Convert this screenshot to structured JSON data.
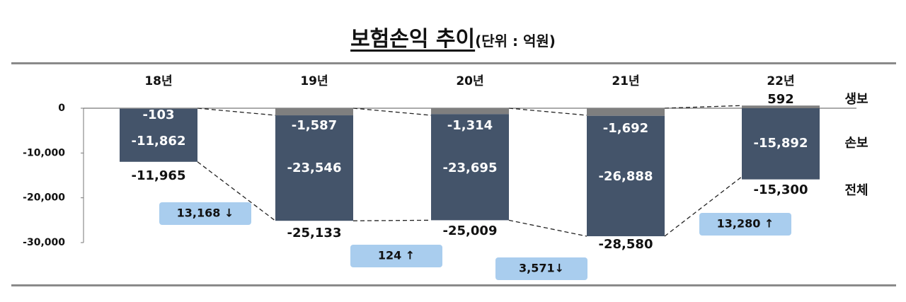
{
  "title": "보험손익 추이",
  "unit": "(단위 : 억원)",
  "chart_data": {
    "type": "bar",
    "categories": [
      "18년",
      "19년",
      "20년",
      "21년",
      "22년"
    ],
    "series": [
      {
        "name": "생보",
        "values": [
          -103,
          -1587,
          -1314,
          -1692,
          592
        ]
      },
      {
        "name": "손보",
        "values": [
          -11862,
          -23546,
          -23695,
          -26888,
          -15892
        ]
      },
      {
        "name": "전체",
        "values": [
          -11965,
          -25133,
          -25009,
          -28580,
          -15300
        ]
      }
    ],
    "data_labels": {
      "life": [
        "-103",
        "-1,587",
        "-1,314",
        "-1,692",
        "592"
      ],
      "nonlife": [
        "-11,862",
        "-23,546",
        "-23,695",
        "-26,888",
        "-15,892"
      ],
      "total": [
        "-11,965",
        "-25,133",
        "-25,009",
        "-28,580",
        "-15,300"
      ]
    },
    "yticks": [
      0,
      -10000,
      -20000,
      -30000
    ],
    "ytick_labels": [
      "0",
      "-10,000",
      "-20,000",
      "-30,000"
    ],
    "ylim": [
      -30000,
      0
    ],
    "changes": [
      {
        "label": "13,168 ↓",
        "value": 13168,
        "direction": "down"
      },
      {
        "label": "124 ↑",
        "value": 124,
        "direction": "up"
      },
      {
        "label": "3,571↓",
        "value": 3571,
        "direction": "down"
      },
      {
        "label": "13,280 ↑",
        "value": 13280,
        "direction": "up"
      }
    ],
    "series_labels": [
      "생보",
      "손보",
      "전체"
    ],
    "colors": {
      "life": "#7f7f7f",
      "nonlife": "#44546a",
      "callout": "#a9cdee",
      "label_on_bar": "#ffffff"
    }
  }
}
